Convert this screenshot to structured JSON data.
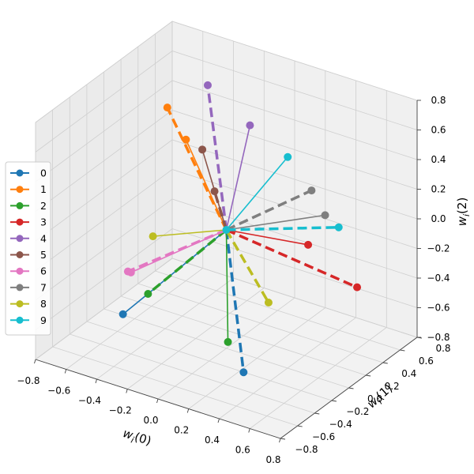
{
  "chart_data": {
    "type": "scatter",
    "projection": "3d",
    "grid": true,
    "legend": "center-left",
    "axes": {
      "x": {
        "label_base": "w",
        "label_sub": "i",
        "label_arg": "(0)",
        "ticks": [
          "−0.8",
          "−0.6",
          "−0.4",
          "−0.2",
          "0.0",
          "0.2",
          "0.4",
          "0.6",
          "0.8"
        ],
        "range": [
          -0.8,
          0.8
        ]
      },
      "y": {
        "label_base": "w",
        "label_sub": "i",
        "label_arg": "(1)",
        "ticks": [
          "−0.8",
          "−0.6",
          "−0.4",
          "−0.2",
          "0.0",
          "0.2",
          "0.4",
          "0.6",
          "0.8"
        ],
        "range": [
          -0.8,
          0.8
        ]
      },
      "z": {
        "label_base": "w",
        "label_sub": "i",
        "label_arg": "(2)",
        "ticks": [
          "−0.8",
          "−0.6",
          "−0.4",
          "−0.2",
          "0.0",
          "0.2",
          "0.4",
          "0.6",
          "0.8"
        ],
        "range": [
          -0.8,
          0.8
        ]
      }
    },
    "series": [
      {
        "name": "0",
        "color": "#1f77b4",
        "solid_end": [
          -0.48,
          -0.35,
          -0.58
        ],
        "dashed_end": [
          0.28,
          -0.3,
          -0.74
        ]
      },
      {
        "name": "1",
        "color": "#ff7f0e",
        "solid_end": [
          -0.42,
          0.28,
          0.35
        ],
        "dashed_end": [
          -0.62,
          0.42,
          0.44
        ]
      },
      {
        "name": "2",
        "color": "#2ca02c",
        "solid_end": [
          0.15,
          -0.25,
          -0.6
        ],
        "dashed_end": [
          -0.4,
          -0.2,
          -0.48
        ]
      },
      {
        "name": "3",
        "color": "#d62728",
        "solid_end": [
          0.3,
          0.42,
          -0.18
        ],
        "dashed_end": [
          0.62,
          0.42,
          -0.36
        ]
      },
      {
        "name": "4",
        "color": "#9467bd",
        "solid_end": [
          -0.08,
          0.42,
          0.5
        ],
        "dashed_end": [
          -0.3,
          0.32,
          0.74
        ]
      },
      {
        "name": "5",
        "color": "#8c564b",
        "solid_end": [
          -0.33,
          0.31,
          0.3
        ],
        "dashed_end": [
          -0.2,
          0.22,
          0.1
        ]
      },
      {
        "name": "6",
        "color": "#e377c2",
        "solid_end": [
          -0.4,
          -0.4,
          -0.25
        ],
        "dashed_end": [
          -0.42,
          -0.4,
          -0.25
        ]
      },
      {
        "name": "7",
        "color": "#7f7f7f",
        "solid_end": [
          0.45,
          0.35,
          0.1
        ],
        "dashed_end": [
          0.3,
          0.46,
          0.17
        ]
      },
      {
        "name": "8",
        "color": "#bcbd22",
        "solid_end": [
          -0.34,
          -0.25,
          -0.05
        ],
        "dashed_end": [
          0.22,
          0.1,
          -0.46
        ]
      },
      {
        "name": "9",
        "color": "#17becf",
        "solid_end": [
          0.15,
          0.45,
          0.35
        ],
        "dashed_end": [
          0.55,
          0.33,
          0.06
        ]
      }
    ]
  }
}
